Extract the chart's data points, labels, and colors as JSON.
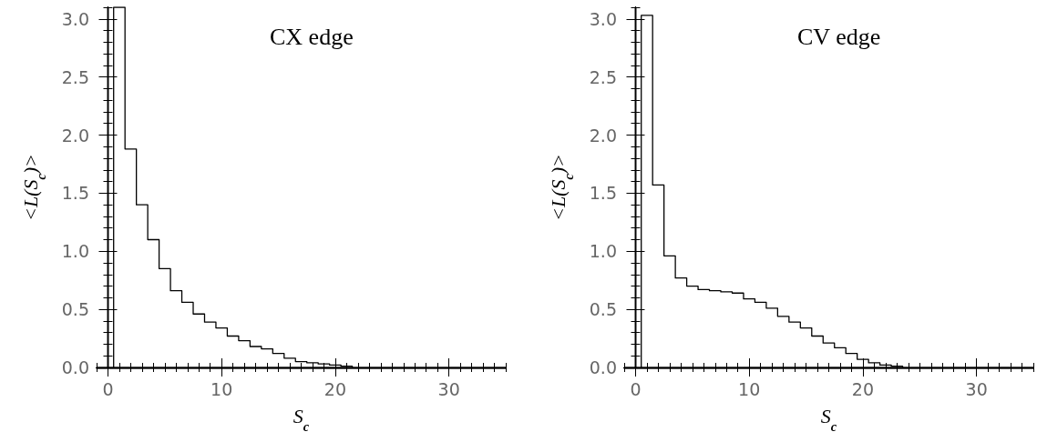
{
  "chart_data": [
    {
      "type": "histogram",
      "title": "CX edge",
      "xlabel": "S$_{c}$",
      "ylabel": "<L(S$_{c}$)>",
      "color": "#000000",
      "bins": [
        0.5,
        1.5,
        2.5,
        3.5,
        4.5,
        5.5,
        6.5,
        7.5,
        8.5,
        9.5,
        10.5,
        11.5,
        12.5,
        13.5,
        14.5,
        15.5,
        16.5,
        17.5,
        18.5,
        19.5,
        20.5,
        21.5
      ],
      "values": [
        3.1,
        1.88,
        1.4,
        1.1,
        0.85,
        0.66,
        0.56,
        0.46,
        0.39,
        0.34,
        0.27,
        0.23,
        0.18,
        0.16,
        0.12,
        0.08,
        0.05,
        0.04,
        0.03,
        0.02,
        0.01
      ],
      "xlim": [
        -1,
        35
      ],
      "xticks": [
        0,
        10,
        20,
        30
      ],
      "ylim": [
        0,
        3.1
      ],
      "yticks": [
        {
          "value": 0,
          "label": "0.0"
        },
        0.5,
        {
          "value": 1,
          "label": "1.0"
        },
        1.5,
        {
          "value": 2,
          "label": "2.0"
        },
        2.5,
        {
          "value": 3,
          "label": "3.0"
        }
      ],
      "grid": false
    },
    {
      "type": "histogram",
      "title": "CV edge",
      "xlabel": "S$_{c}$",
      "ylabel": "<L(S$_{c}$)>",
      "color": "#000000",
      "bins": [
        0.5,
        1.5,
        2.5,
        3.5,
        4.5,
        5.5,
        6.5,
        7.5,
        8.5,
        9.5,
        10.5,
        11.5,
        12.5,
        13.5,
        14.5,
        15.5,
        16.5,
        17.5,
        18.5,
        19.5,
        20.5,
        21.5,
        22.5,
        23.5
      ],
      "values": [
        3.03,
        1.57,
        0.96,
        0.77,
        0.7,
        0.67,
        0.66,
        0.65,
        0.64,
        0.59,
        0.56,
        0.51,
        0.44,
        0.39,
        0.34,
        0.27,
        0.21,
        0.17,
        0.12,
        0.07,
        0.04,
        0.02,
        0.01
      ],
      "xlim": [
        -1,
        35
      ],
      "xticks": [
        0,
        10,
        20,
        30
      ],
      "ylim": [
        0,
        3.1
      ],
      "yticks": [
        {
          "value": 0,
          "label": "0.0"
        },
        0.5,
        {
          "value": 1,
          "label": "1.0"
        },
        1.5,
        {
          "value": 2,
          "label": "2.0"
        },
        2.5,
        {
          "value": 3,
          "label": "3.0"
        }
      ],
      "grid": false
    }
  ]
}
